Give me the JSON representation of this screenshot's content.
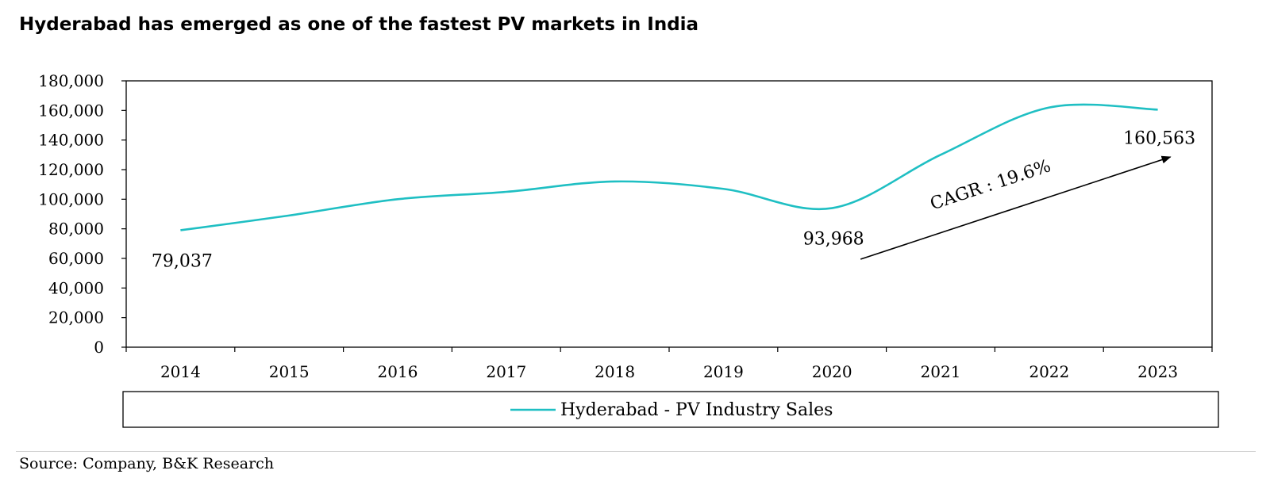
{
  "header": {
    "title": "Hyderabad has emerged as one of the fastest PV markets in India"
  },
  "footer": {
    "source": "Source: Company, B&K Research"
  },
  "chart_data": {
    "type": "line",
    "title": "Hyderabad has emerged as one of the fastest PV markets in India",
    "xlabel": "",
    "ylabel": "",
    "categories": [
      "2014",
      "2015",
      "2016",
      "2017",
      "2018",
      "2019",
      "2020",
      "2021",
      "2022",
      "2023"
    ],
    "series": [
      {
        "name": "Hyderabad - PV Industry Sales",
        "color": "#1FBFC3",
        "values": [
          79037,
          89000,
          100000,
          105000,
          112000,
          107000,
          93968,
          130000,
          162000,
          160563
        ]
      }
    ],
    "ylim": [
      0,
      180000
    ],
    "yticks": [
      0,
      20000,
      40000,
      60000,
      80000,
      100000,
      120000,
      140000,
      160000,
      180000
    ],
    "ytick_labels": [
      "0",
      "20,000",
      "40,000",
      "60,000",
      "80,000",
      "100,000",
      "120,000",
      "140,000",
      "160,000",
      "180,000"
    ],
    "grid": false,
    "legend": {
      "position": "bottom",
      "entries": [
        "Hyderabad - PV Industry Sales"
      ]
    },
    "data_labels": [
      {
        "category": "2014",
        "text": "79,037"
      },
      {
        "category": "2020",
        "text": "93,968"
      },
      {
        "category": "2023",
        "text": "160,563"
      }
    ],
    "annotations": [
      {
        "text": "CAGR : 19.6%",
        "type": "arrow",
        "from_category": "2020",
        "to_category": "2023"
      }
    ]
  }
}
